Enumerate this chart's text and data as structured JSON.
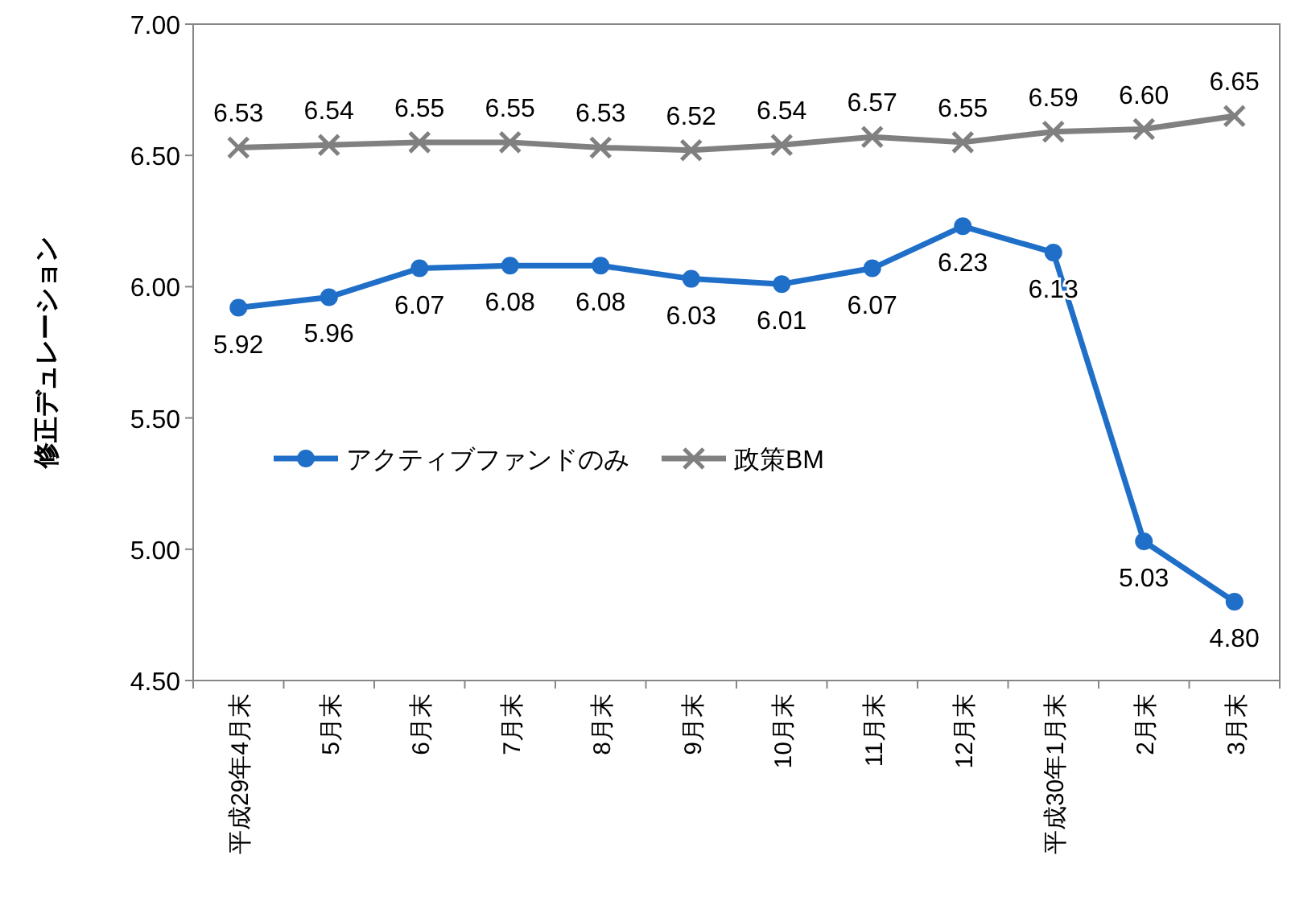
{
  "chart_data": {
    "type": "line",
    "ylabel": "修正デュレーション",
    "categories": [
      "平成29年4月末",
      "5月末",
      "6月末",
      "7月末",
      "8月末",
      "9月末",
      "10月末",
      "11月末",
      "12月末",
      "平成30年1月末",
      "2月末",
      "3月末"
    ],
    "series": [
      {
        "name": "アクティブファンドのみ",
        "color": "#1f6fc8",
        "marker": "circle",
        "values": [
          5.92,
          5.96,
          6.07,
          6.08,
          6.08,
          6.03,
          6.01,
          6.07,
          6.23,
          6.13,
          5.03,
          4.8
        ],
        "value_labels": [
          "5.92",
          "5.96",
          "6.07",
          "6.08",
          "6.08",
          "6.03",
          "6.01",
          "6.07",
          "6.23",
          "6.13",
          "5.03",
          "4.80"
        ]
      },
      {
        "name": "政策BM",
        "color": "#808080",
        "marker": "cross",
        "values": [
          6.53,
          6.54,
          6.55,
          6.55,
          6.53,
          6.52,
          6.54,
          6.57,
          6.55,
          6.59,
          6.6,
          6.65
        ],
        "value_labels": [
          "6.53",
          "6.54",
          "6.55",
          "6.55",
          "6.53",
          "6.52",
          "6.54",
          "6.57",
          "6.55",
          "6.59",
          "6.60",
          "6.65"
        ]
      }
    ],
    "ylim": [
      4.5,
      7.0
    ],
    "yticks": [
      {
        "value": 4.5,
        "label": "4.50"
      },
      {
        "value": 5.0,
        "label": "5.00"
      },
      {
        "value": 5.5,
        "label": "5.50"
      },
      {
        "value": 6.0,
        "label": "6.00"
      },
      {
        "value": 6.5,
        "label": "6.50"
      },
      {
        "value": 7.0,
        "label": "7.00"
      }
    ],
    "grid": false,
    "legend": "left"
  }
}
